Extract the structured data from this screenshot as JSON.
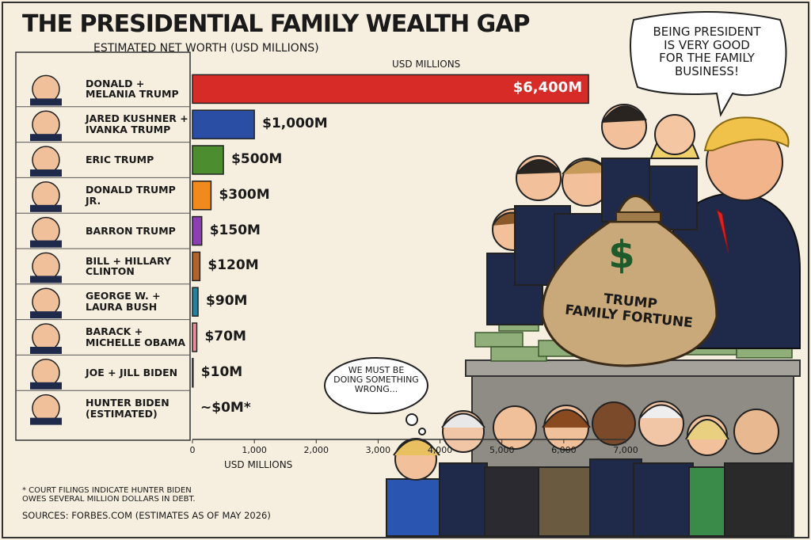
{
  "chart_data": {
    "type": "barh",
    "title": "THE PRESIDENTIAL FAMILY WEALTH GAP",
    "subtitle": "ESTIMATED NET WORTH (USD MILLIONS)",
    "x_label_top": "USD MILLIONS",
    "x_label": "USD MILLIONS",
    "categories": [
      "DONALD +\nMELANIA TRUMP",
      "JARED KUSHNER +\nIVANKA TRUMP",
      "ERIC TRUMP",
      "DONALD TRUMP JR.",
      "BARRON TRUMP",
      "BILL + HILLARY CLINTON",
      "GEORGE W. +\nLAURA BUSH",
      "BARACK +\nMICHELLE OBAMA",
      "JOE + JILL BIDEN",
      "HUNTER BIDEN\n(ESTIMATED)"
    ],
    "values": [
      6400,
      1000,
      500,
      300,
      150,
      120,
      90,
      70,
      10,
      0
    ],
    "value_labels": [
      "$6,400M",
      "$1,000M",
      "$500M",
      "$300M",
      "$150M",
      "$120M",
      "$90M",
      "$70M",
      "$10M",
      "~$0M*"
    ],
    "colors": [
      "#d72b27",
      "#2a4ea3",
      "#4b8d2f",
      "#f08a1c",
      "#8b3fb2",
      "#b0642a",
      "#2a809b",
      "#ea8f99",
      "#2a50a0",
      "#333333"
    ],
    "xlim": [
      0,
      7000
    ],
    "xticks": [
      0,
      {
        "value": 1000,
        "label": "1,000"
      },
      {
        "value": 2000,
        "label": "2,000"
      },
      {
        "value": 3000,
        "label": "3,000"
      },
      {
        "value": 4000,
        "label": "4,000"
      },
      {
        "value": 5000,
        "label": "5,000"
      },
      {
        "value": 6000,
        "label": "6,000"
      },
      {
        "value": 7000,
        "label": "7,000"
      }
    ],
    "footnote": "* COURT FILINGS INDICATE HUNTER BIDEN\nOWES SEVERAL MILLION DOLLARS IN DEBT.",
    "source": "SOURCES: FORBES.COM (ESTIMATES AS OF MAY 2026)",
    "annotations": {
      "trump_bubble": "BEING PRESIDENT\nIS VERY GOOD\nFOR THE FAMILY\nBUSINESS!",
      "crowd_bubble": "WE MUST BE\nDOING SOMETHING\nWRONG...",
      "bag_symbol": "$",
      "bag_text": "TRUMP\nFAMILY FORTUNE"
    }
  }
}
